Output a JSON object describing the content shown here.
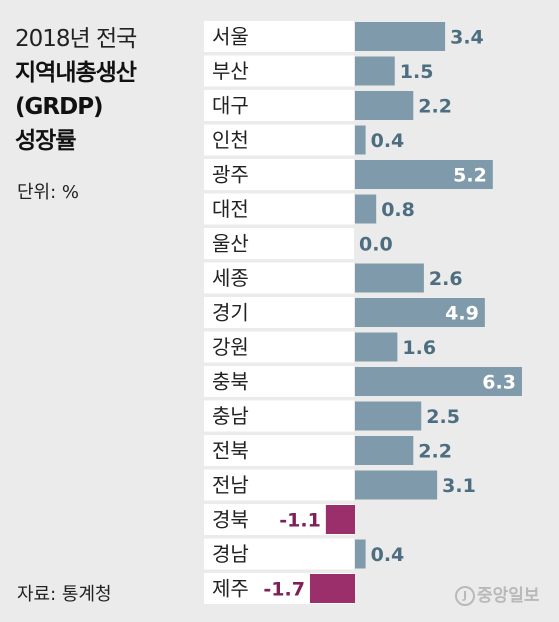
{
  "title": {
    "line1": "2018년 전국",
    "line2": "지역내총생산",
    "line3": "(GRDP)",
    "line4": "성장률"
  },
  "unit_label": "단위: %",
  "source_label": "자료: 통계청",
  "logo_text": "중앙일보",
  "colors": {
    "positive": "#7f9bab",
    "negative": "#9a2f6c",
    "label_bg": "#ffffff",
    "value_inside": "#ffffff",
    "value_outside_pos": "#4d6d80",
    "value_outside_neg": "#7e2158"
  },
  "chart_data": {
    "type": "bar",
    "orientation": "horizontal",
    "categories": [
      "서울",
      "부산",
      "대구",
      "인천",
      "광주",
      "대전",
      "울산",
      "세종",
      "경기",
      "강원",
      "충북",
      "충남",
      "전북",
      "전남",
      "경북",
      "경남",
      "제주"
    ],
    "values": [
      3.4,
      1.5,
      2.2,
      0.4,
      5.2,
      0.8,
      0.0,
      2.6,
      4.9,
      1.6,
      6.3,
      2.5,
      2.2,
      3.1,
      -1.1,
      0.4,
      -1.7
    ],
    "value_labels": [
      "3.4",
      "1.5",
      "2.2",
      "0.4",
      "5.2",
      "0.8",
      "0.0",
      "2.6",
      "4.9",
      "1.6",
      "6.3",
      "2.5",
      "2.2",
      "3.1",
      "-1.1",
      "0.4",
      "-1.7"
    ],
    "xlim": [
      -1.7,
      6.3
    ],
    "grid": false,
    "legend": "none"
  }
}
